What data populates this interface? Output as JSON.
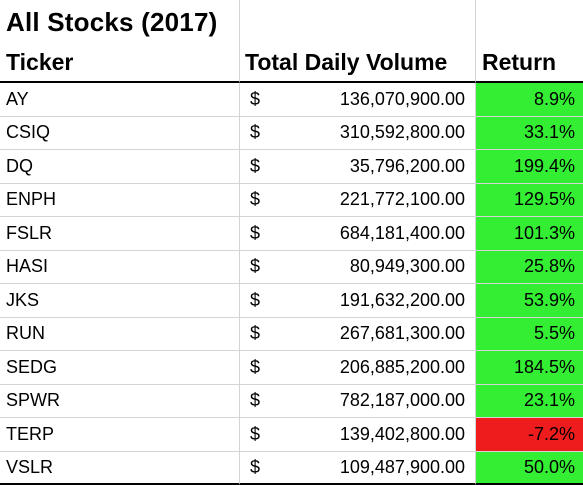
{
  "sheet": {
    "title": "All Stocks (2017)",
    "headers": {
      "ticker": "Ticker",
      "volume": "Total Daily Volume",
      "return": "Return"
    },
    "currency_symbol": "$",
    "rows": [
      {
        "ticker": "AY",
        "volume": "136,070,900.00",
        "return": "8.9%",
        "return_value": 8.9,
        "fill": "#33ee33"
      },
      {
        "ticker": "CSIQ",
        "volume": "310,592,800.00",
        "return": "33.1%",
        "return_value": 33.1,
        "fill": "#33ee33"
      },
      {
        "ticker": "DQ",
        "volume": "35,796,200.00",
        "return": "199.4%",
        "return_value": 199.4,
        "fill": "#33ee33"
      },
      {
        "ticker": "ENPH",
        "volume": "221,772,100.00",
        "return": "129.5%",
        "return_value": 129.5,
        "fill": "#33ee33"
      },
      {
        "ticker": "FSLR",
        "volume": "684,181,400.00",
        "return": "101.3%",
        "return_value": 101.3,
        "fill": "#33ee33"
      },
      {
        "ticker": "HASI",
        "volume": "80,949,300.00",
        "return": "25.8%",
        "return_value": 25.8,
        "fill": "#33ee33"
      },
      {
        "ticker": "JKS",
        "volume": "191,632,200.00",
        "return": "53.9%",
        "return_value": 53.9,
        "fill": "#33ee33"
      },
      {
        "ticker": "RUN",
        "volume": "267,681,300.00",
        "return": "5.5%",
        "return_value": 5.5,
        "fill": "#33ee33"
      },
      {
        "ticker": "SEDG",
        "volume": "206,885,200.00",
        "return": "184.5%",
        "return_value": 184.5,
        "fill": "#33ee33"
      },
      {
        "ticker": "SPWR",
        "volume": "782,187,000.00",
        "return": "23.1%",
        "return_value": 23.1,
        "fill": "#33ee33"
      },
      {
        "ticker": "TERP",
        "volume": "139,402,800.00",
        "return": "-7.2%",
        "return_value": -7.2,
        "fill": "#ee1c1c"
      },
      {
        "ticker": "VSLR",
        "volume": "109,487,900.00",
        "return": "50.0%",
        "return_value": 50.0,
        "fill": "#33ee33"
      }
    ]
  },
  "colors": {
    "positive_fill": "#33ee33",
    "negative_fill": "#ee1c1c",
    "gridline": "#d4d4d4"
  }
}
